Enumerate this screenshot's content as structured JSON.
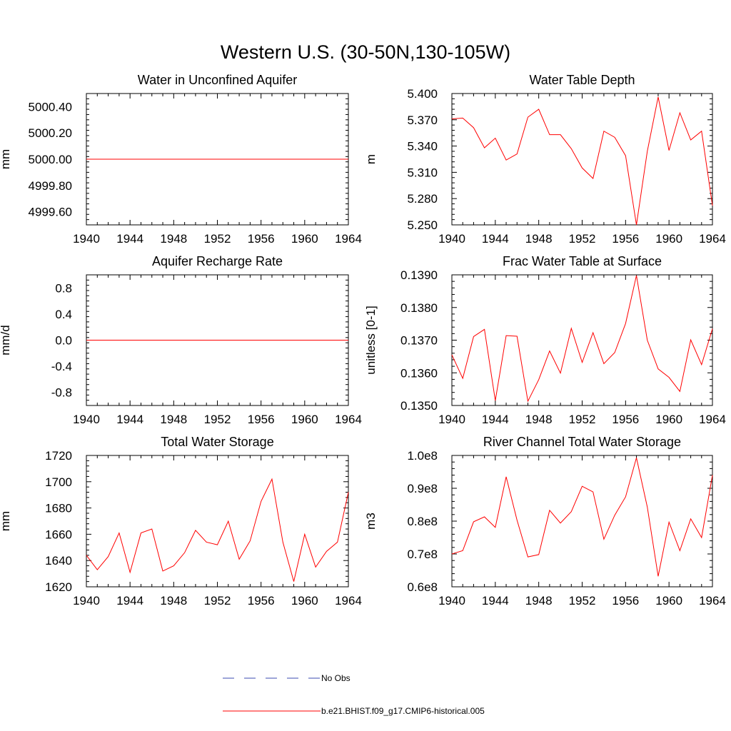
{
  "figure": {
    "title": "Western U.S. (30-50N,130-105W)",
    "line_color": "#ff0000",
    "obs_color": "#3b4bb0"
  },
  "legend": {
    "entries": [
      {
        "label": "No Obs",
        "style": "dashed",
        "color": "#3b4bb0"
      },
      {
        "label": "b.e21.BHIST.f09_g17.CMIP6-historical.005",
        "style": "solid",
        "color": "#ff0000"
      }
    ]
  },
  "chart_data": [
    {
      "type": "line",
      "title": "Water in Unconfined Aquifer",
      "ylabel": "mm",
      "xlim": [
        1940,
        1964
      ],
      "ylim": [
        4999.5,
        5000.5
      ],
      "xticks": [
        1940,
        1944,
        1948,
        1952,
        1956,
        1960,
        1964
      ],
      "yticks": [
        4999.6,
        4999.8,
        5000.0,
        5000.2,
        5000.4
      ],
      "ytick_labels": [
        "4999.60",
        "4999.80",
        "5000.00",
        "5000.20",
        "5000.40"
      ],
      "series": [
        {
          "x": [
            1940,
            1941,
            1942,
            1943,
            1944,
            1945,
            1946,
            1947,
            1948,
            1949,
            1950,
            1951,
            1952,
            1953,
            1954,
            1955,
            1956,
            1957,
            1958,
            1959,
            1960,
            1961,
            1962,
            1963,
            1964
          ],
          "y": [
            5000,
            5000,
            5000,
            5000,
            5000,
            5000,
            5000,
            5000,
            5000,
            5000,
            5000,
            5000,
            5000,
            5000,
            5000,
            5000,
            5000,
            5000,
            5000,
            5000,
            5000,
            5000,
            5000,
            5000,
            5000
          ]
        }
      ]
    },
    {
      "type": "line",
      "title": "Water Table Depth",
      "ylabel": "m",
      "xlim": [
        1940,
        1964
      ],
      "ylim": [
        5.25,
        5.4
      ],
      "xticks": [
        1940,
        1944,
        1948,
        1952,
        1956,
        1960,
        1964
      ],
      "yticks": [
        5.25,
        5.28,
        5.31,
        5.34,
        5.37,
        5.4
      ],
      "ytick_labels": [
        "5.250",
        "5.280",
        "5.310",
        "5.340",
        "5.370",
        "5.400"
      ],
      "series": [
        {
          "x": [
            1940,
            1941,
            1942,
            1943,
            1944,
            1945,
            1946,
            1947,
            1948,
            1949,
            1950,
            1951,
            1952,
            1953,
            1954,
            1955,
            1956,
            1957,
            1958,
            1959,
            1960,
            1961,
            1962,
            1963,
            1964
          ],
          "y": [
            5.371,
            5.372,
            5.361,
            5.338,
            5.349,
            5.324,
            5.331,
            5.373,
            5.382,
            5.353,
            5.353,
            5.337,
            5.315,
            5.303,
            5.357,
            5.35,
            5.329,
            5.25,
            5.334,
            5.396,
            5.335,
            5.378,
            5.347,
            5.357,
            5.272
          ]
        }
      ]
    },
    {
      "type": "line",
      "title": "Aquifer Recharge Rate",
      "ylabel": "mm/d",
      "xlim": [
        1940,
        1964
      ],
      "ylim": [
        -1.0,
        1.0
      ],
      "xticks": [
        1940,
        1944,
        1948,
        1952,
        1956,
        1960,
        1964
      ],
      "yticks": [
        -0.8,
        -0.4,
        0.0,
        0.4,
        0.8
      ],
      "ytick_labels": [
        "-0.8",
        "-0.4",
        "0.0",
        "0.4",
        "0.8"
      ],
      "series": [
        {
          "x": [
            1940,
            1941,
            1942,
            1943,
            1944,
            1945,
            1946,
            1947,
            1948,
            1949,
            1950,
            1951,
            1952,
            1953,
            1954,
            1955,
            1956,
            1957,
            1958,
            1959,
            1960,
            1961,
            1962,
            1963,
            1964
          ],
          "y": [
            0,
            0,
            0,
            0,
            0,
            0,
            0,
            0,
            0,
            0,
            0,
            0,
            0,
            0,
            0,
            0,
            0,
            0,
            0,
            0,
            0,
            0,
            0,
            0,
            0
          ]
        }
      ]
    },
    {
      "type": "line",
      "title": "Frac Water Table at Surface",
      "ylabel": "unitless [0-1]",
      "xlim": [
        1940,
        1964
      ],
      "ylim": [
        0.135,
        0.139
      ],
      "xticks": [
        1940,
        1944,
        1948,
        1952,
        1956,
        1960,
        1964
      ],
      "yticks": [
        0.135,
        0.136,
        0.137,
        0.138,
        0.139
      ],
      "ytick_labels": [
        "0.1350",
        "0.1360",
        "0.1370",
        "0.1380",
        "0.1390"
      ],
      "series": [
        {
          "x": [
            1940,
            1941,
            1942,
            1943,
            1944,
            1945,
            1946,
            1947,
            1948,
            1949,
            1950,
            1951,
            1952,
            1953,
            1954,
            1955,
            1956,
            1957,
            1958,
            1959,
            1960,
            1961,
            1962,
            1963,
            1964
          ],
          "y": [
            0.13655,
            0.13583,
            0.13711,
            0.13733,
            0.13515,
            0.13714,
            0.13712,
            0.13513,
            0.13579,
            0.13667,
            0.13599,
            0.13736,
            0.13632,
            0.13723,
            0.13628,
            0.13662,
            0.13751,
            0.13898,
            0.137,
            0.13612,
            0.13586,
            0.13543,
            0.13701,
            0.13625,
            0.13735
          ]
        }
      ]
    },
    {
      "type": "line",
      "title": "Total Water Storage",
      "ylabel": "mm",
      "xlim": [
        1940,
        1964
      ],
      "ylim": [
        1620,
        1720
      ],
      "xticks": [
        1940,
        1944,
        1948,
        1952,
        1956,
        1960,
        1964
      ],
      "yticks": [
        1620,
        1640,
        1660,
        1680,
        1700,
        1720
      ],
      "ytick_labels": [
        "1620",
        "1640",
        "1660",
        "1680",
        "1700",
        "1720"
      ],
      "series": [
        {
          "x": [
            1940,
            1941,
            1942,
            1943,
            1944,
            1945,
            1946,
            1947,
            1948,
            1949,
            1950,
            1951,
            1952,
            1953,
            1954,
            1955,
            1956,
            1957,
            1958,
            1959,
            1960,
            1961,
            1962,
            1963,
            1964
          ],
          "y": [
            1644,
            1633,
            1643,
            1661,
            1631,
            1661,
            1664,
            1632,
            1636,
            1646,
            1663,
            1654,
            1652,
            1670,
            1641,
            1655,
            1685,
            1702,
            1654,
            1624,
            1660,
            1635,
            1647,
            1654,
            1692
          ]
        }
      ]
    },
    {
      "type": "line",
      "title": "River Channel Total Water Storage",
      "ylabel": "m3",
      "xlim": [
        1940,
        1964
      ],
      "ylim": [
        60000000,
        100000000
      ],
      "xticks": [
        1940,
        1944,
        1948,
        1952,
        1956,
        1960,
        1964
      ],
      "yticks": [
        60000000,
        70000000,
        80000000,
        90000000,
        100000000
      ],
      "ytick_labels": [
        "0.6e8",
        "0.7e8",
        "0.8e8",
        "0.9e8",
        "1.0e8"
      ],
      "series": [
        {
          "x": [
            1940,
            1941,
            1942,
            1943,
            1944,
            1945,
            1946,
            1947,
            1948,
            1949,
            1950,
            1951,
            1952,
            1953,
            1954,
            1955,
            1956,
            1957,
            1958,
            1959,
            1960,
            1961,
            1962,
            1963,
            1964
          ],
          "y": [
            70000000,
            71000000,
            79800000,
            81300000,
            78100000,
            93500000,
            80300000,
            69100000,
            69800000,
            83300000,
            79400000,
            82900000,
            90600000,
            88900000,
            74500000,
            81800000,
            87400000,
            99300000,
            84300000,
            63200000,
            79700000,
            71000000,
            80700000,
            75000000,
            94000000
          ]
        }
      ]
    }
  ]
}
